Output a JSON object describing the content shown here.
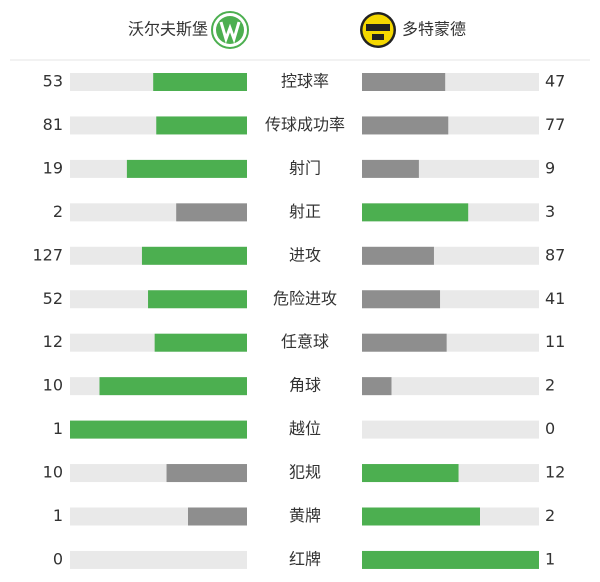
{
  "chart_data": {
    "type": "butterfly",
    "categories": [
      "控球率",
      "传球成功率",
      "射门",
      "射正",
      "进攻",
      "危险进攻",
      "任意球",
      "角球",
      "越位",
      "犯规",
      "黄牌",
      "红牌"
    ],
    "series": [
      {
        "name": "沃尔夫斯堡",
        "values": [
          53,
          81,
          19,
          2,
          127,
          52,
          12,
          10,
          1,
          10,
          1,
          0
        ]
      },
      {
        "name": "多特蒙德",
        "values": [
          47,
          77,
          9,
          3,
          87,
          41,
          11,
          2,
          0,
          12,
          2,
          1
        ]
      }
    ],
    "lead_color": "#4caf50",
    "trail_color": "#8e8e8e",
    "track_color": "#e9e9e9"
  }
}
